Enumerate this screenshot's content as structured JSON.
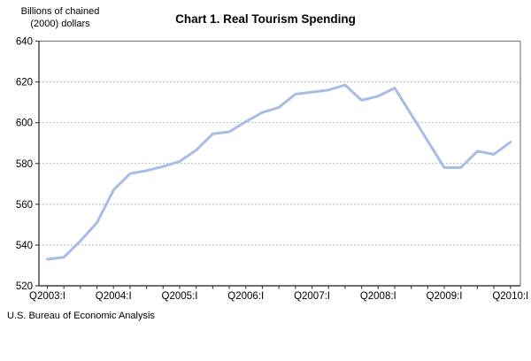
{
  "page": {
    "unit_label_line1": "Billions of chained",
    "unit_label_line2": "(2000) dollars",
    "title": "Chart 1. Real Tourism Spending",
    "source": "U.S. Bureau of Economic Analysis"
  },
  "chart_data": {
    "type": "line",
    "title": "Chart 1. Real Tourism Spending",
    "ylabel": "Billions of chained (2000) dollars",
    "grid": "horizontal-dotted",
    "legend_position": "none",
    "ylim": [
      520,
      640
    ],
    "y_ticks": [
      520,
      540,
      560,
      580,
      600,
      620,
      640
    ],
    "x": [
      "2003:I",
      "2003:II",
      "2003:III",
      "2003:IV",
      "2004:I",
      "2004:II",
      "2004:III",
      "2004:IV",
      "2005:I",
      "2005:II",
      "2005:III",
      "2005:IV",
      "2006:I",
      "2006:II",
      "2006:III",
      "2006:IV",
      "2007:I",
      "2007:II",
      "2007:III",
      "2007:IV",
      "2008:I",
      "2008:II",
      "2008:III",
      "2008:IV",
      "2009:I",
      "2009:II",
      "2009:III",
      "2009:IV",
      "2010:I"
    ],
    "x_tick_labels": [
      "Q2003:I",
      "Q2004:I",
      "Q2005:I",
      "Q2006:I",
      "Q2007:I",
      "Q2008:I",
      "Q2009:I",
      "Q2010:I"
    ],
    "x_label_every": 4,
    "series": [
      {
        "name": "Real tourism spending",
        "values": [
          533,
          534,
          542,
          551,
          567,
          575,
          576.5,
          578.5,
          581,
          586.5,
          594.5,
          595.5,
          600.5,
          605,
          607.5,
          614,
          615,
          616,
          618.5,
          611,
          613,
          617,
          604,
          591,
          578,
          578,
          586,
          584.5,
          590.5
        ]
      }
    ],
    "colors": {
      "line": "#a8bce8",
      "gridline": "#b8b8b8",
      "frame": "#7f7f7f",
      "axis": "#404040",
      "text": "#000000"
    },
    "source": "U.S. Bureau of Economic Analysis"
  }
}
